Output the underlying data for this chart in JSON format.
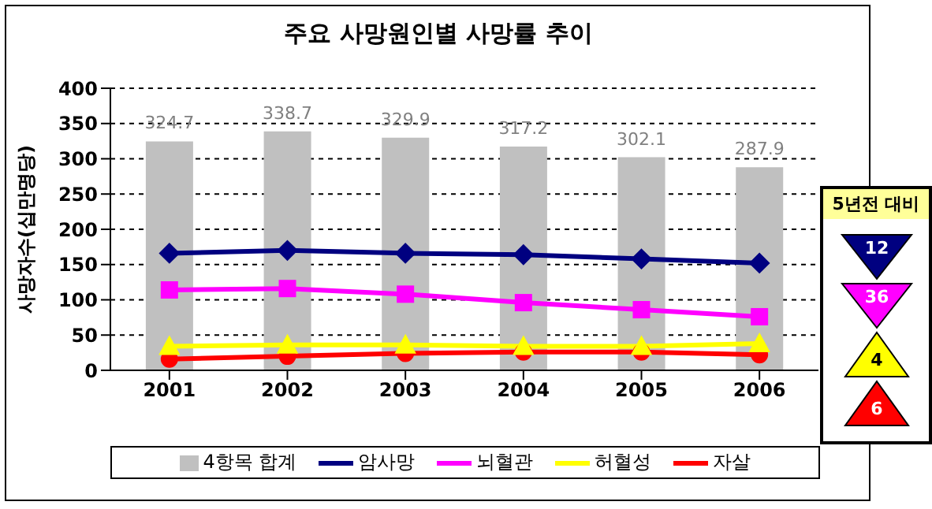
{
  "chart_data": {
    "type": "bar",
    "title": "주요 사망원인별 사망률 추이",
    "ylabel": "사망자수(십만명당)",
    "categories": [
      "2001",
      "2002",
      "2003",
      "2004",
      "2005",
      "2006"
    ],
    "series": [
      {
        "name": "4항목 합계",
        "color": "#c0c0c0",
        "values": [
          324.7,
          338.7,
          329.9,
          317.2,
          302.1,
          287.9
        ],
        "value_labels": [
          "324.7",
          "338.7",
          "329.9",
          "317.2",
          "302.1",
          "287.9"
        ]
      },
      {
        "name": "암사망",
        "type": "line",
        "color": "#000080",
        "marker": "diamond",
        "values": [
          166,
          170,
          166,
          164,
          158,
          152
        ]
      },
      {
        "name": "뇌혈관",
        "type": "line",
        "color": "#ff00ff",
        "marker": "square",
        "values": [
          114,
          116,
          108,
          96,
          86,
          76
        ]
      },
      {
        "name": "허혈성",
        "type": "line",
        "color": "#ffff00",
        "marker": "triangle",
        "values": [
          34,
          36,
          36,
          34,
          34,
          38
        ]
      },
      {
        "name": "자살",
        "type": "line",
        "color": "#ff0000",
        "marker": "circle",
        "values": [
          16,
          20,
          24,
          26,
          26,
          22
        ]
      }
    ],
    "ylim": [
      0,
      400
    ],
    "yticks": [
      0,
      50,
      100,
      150,
      200,
      250,
      300,
      350,
      400
    ],
    "grid": "y",
    "legend": "bottom",
    "annotations": [
      "5년전 대비",
      "12",
      "36",
      "4",
      "6"
    ]
  }
}
